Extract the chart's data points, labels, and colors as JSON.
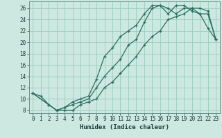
{
  "xlabel": "Humidex (Indice chaleur)",
  "bg_color": "#cce8e0",
  "grid_color": "#99ccbb",
  "line_color": "#2d6e62",
  "xlim": [
    -0.5,
    23.5
  ],
  "ylim": [
    7.5,
    27.2
  ],
  "xticks": [
    0,
    1,
    2,
    3,
    4,
    5,
    6,
    7,
    8,
    9,
    10,
    11,
    12,
    13,
    14,
    15,
    16,
    17,
    18,
    19,
    20,
    21,
    22,
    23
  ],
  "yticks": [
    8,
    10,
    12,
    14,
    16,
    18,
    20,
    22,
    24,
    26
  ],
  "line1_x": [
    0,
    1,
    2,
    3,
    4,
    5,
    6,
    7,
    8,
    9,
    10,
    11,
    12,
    13,
    14,
    15,
    16,
    17,
    18,
    19,
    20,
    21,
    22,
    23
  ],
  "line1_y": [
    11,
    10.5,
    9,
    8,
    8.5,
    9.5,
    10,
    10.5,
    13.5,
    17.5,
    19,
    21,
    22,
    23,
    25,
    26.5,
    26.5,
    25,
    26.5,
    26.5,
    25.5,
    25,
    22.5,
    20.5
  ],
  "line2_x": [
    0,
    2,
    3,
    4,
    5,
    6,
    7,
    8,
    9,
    10,
    11,
    12,
    13,
    14,
    15,
    16,
    17,
    18,
    19,
    20,
    21,
    22,
    23
  ],
  "line2_y": [
    11,
    9,
    8,
    8.5,
    9,
    9.5,
    10,
    12,
    14,
    15.5,
    17,
    19.5,
    20.5,
    23.5,
    26,
    26.5,
    26,
    25,
    26,
    26,
    25,
    25,
    20.5
  ],
  "line3_x": [
    0,
    2,
    3,
    4,
    5,
    6,
    7,
    8,
    9,
    10,
    11,
    12,
    13,
    14,
    15,
    16,
    17,
    18,
    19,
    20,
    21,
    22,
    23
  ],
  "line3_y": [
    11,
    9,
    8,
    8,
    8,
    9,
    9.5,
    10,
    12,
    13,
    14.5,
    16,
    17.5,
    19.5,
    21,
    22,
    24,
    24.5,
    25,
    26,
    26,
    25.5,
    20.5
  ]
}
